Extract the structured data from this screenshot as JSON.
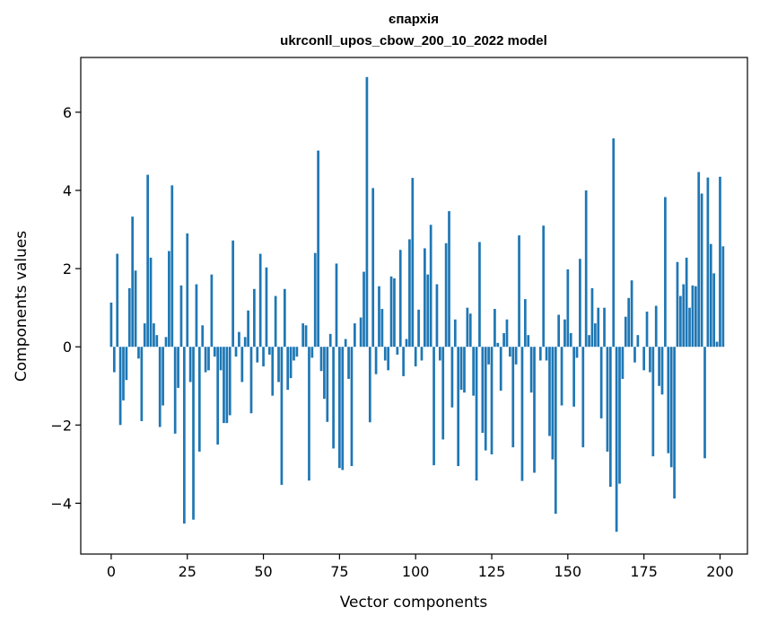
{
  "chart_data": {
    "type": "bar",
    "title": "єпархія",
    "subtitle": "ukrconll_upos_cbow_200_10_2022 model",
    "xlabel": "Vector components",
    "ylabel": "Components values",
    "xlim": [
      -10,
      209
    ],
    "ylim": [
      -5.3,
      7.4
    ],
    "xticks": [
      0,
      25,
      50,
      75,
      100,
      125,
      150,
      175,
      200
    ],
    "yticks": [
      -4,
      -2,
      0,
      2,
      4,
      6
    ],
    "ytick_labels": [
      "−4",
      "−2",
      "0",
      "2",
      "4",
      "6"
    ],
    "bar_color": "#1f77b4",
    "grid": false,
    "values": [
      1.13,
      -0.65,
      2.38,
      -2.0,
      -1.37,
      -0.85,
      1.5,
      3.33,
      1.95,
      -0.3,
      -1.9,
      0.6,
      4.4,
      2.28,
      0.6,
      0.3,
      -2.05,
      -1.5,
      0.25,
      2.45,
      4.13,
      -2.22,
      -1.05,
      1.57,
      -4.52,
      2.9,
      -0.9,
      -4.42,
      1.6,
      -2.68,
      0.55,
      -0.65,
      -0.6,
      1.85,
      -0.25,
      -2.5,
      -0.6,
      -1.95,
      -1.95,
      -1.75,
      2.72,
      -0.25,
      0.38,
      -0.9,
      0.25,
      0.93,
      -1.7,
      1.48,
      -0.4,
      2.38,
      -0.5,
      2.03,
      -0.2,
      -1.25,
      1.3,
      -0.9,
      -3.53,
      1.48,
      -1.1,
      -0.8,
      -0.35,
      -0.25,
      0.0,
      0.6,
      0.55,
      -3.42,
      -0.28,
      2.4,
      5.02,
      -0.62,
      -1.33,
      -1.92,
      0.33,
      -2.6,
      2.13,
      -3.1,
      -3.15,
      0.2,
      -0.82,
      -3.05,
      0.6,
      0.0,
      0.75,
      1.92,
      6.9,
      -1.93,
      4.06,
      -0.7,
      1.55,
      0.97,
      -0.35,
      -0.6,
      1.8,
      1.75,
      -0.2,
      2.48,
      -0.75,
      0.2,
      2.75,
      4.32,
      -0.5,
      0.95,
      -0.35,
      2.52,
      1.85,
      3.12,
      -3.03,
      1.6,
      -0.35,
      -2.37,
      2.65,
      3.47,
      -1.55,
      0.7,
      -3.05,
      -1.1,
      -1.17,
      1.0,
      0.85,
      -1.25,
      -3.42,
      2.68,
      -2.2,
      -2.65,
      -0.45,
      -2.75,
      0.97,
      0.1,
      -1.12,
      0.35,
      0.7,
      -0.25,
      -2.57,
      -0.45,
      2.85,
      -3.43,
      1.22,
      0.3,
      -1.17,
      -3.22,
      0.0,
      -0.35,
      3.1,
      -0.35,
      -2.28,
      -2.88,
      -4.27,
      0.82,
      -1.5,
      0.7,
      1.98,
      0.35,
      -1.53,
      -0.28,
      2.25,
      -2.57,
      4.0,
      0.3,
      1.5,
      0.6,
      1.0,
      -1.83,
      1.0,
      -2.68,
      -3.58,
      5.33,
      -4.73,
      -3.5,
      -0.82,
      0.77,
      1.25,
      1.7,
      -0.4,
      0.3,
      0.0,
      -0.6,
      0.9,
      -0.65,
      -2.8,
      1.05,
      -1.0,
      -1.22,
      3.83,
      -2.72,
      -3.08,
      -3.88,
      2.17,
      1.3,
      1.6,
      2.28,
      1.0,
      1.57,
      1.55,
      4.47,
      3.92,
      -2.85,
      4.33,
      2.63,
      1.88,
      0.13,
      4.35,
      2.57
    ]
  }
}
